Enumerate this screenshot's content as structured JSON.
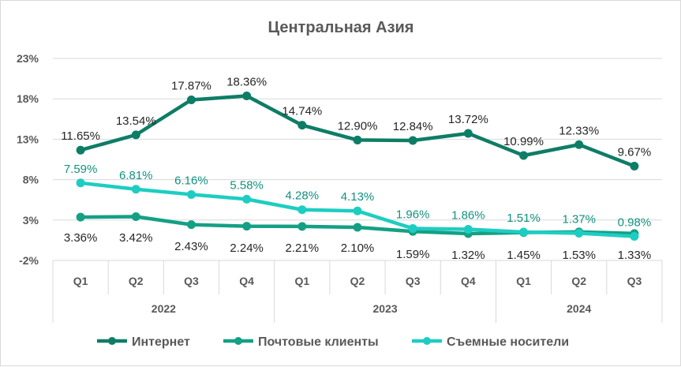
{
  "chart_data": {
    "type": "line",
    "title": "Центральная Азия",
    "y_ticks": [
      "23%",
      "18%",
      "13%",
      "8%",
      "3%",
      "-2%"
    ],
    "ylim": [
      -2,
      23
    ],
    "grid": true,
    "categories": [
      "Q1",
      "Q2",
      "Q3",
      "Q4",
      "Q1",
      "Q2",
      "Q3",
      "Q4",
      "Q1",
      "Q2",
      "Q3"
    ],
    "groups": [
      {
        "label": "2022",
        "count": 4
      },
      {
        "label": "2023",
        "count": 4
      },
      {
        "label": "2024",
        "count": 3
      }
    ],
    "legend_position": "bottom",
    "series": [
      {
        "name": "Интернет",
        "color": "#0e7d66",
        "label_color": "#262626",
        "label_pos": "above",
        "values": [
          11.65,
          13.54,
          17.87,
          18.36,
          14.74,
          12.9,
          12.84,
          13.72,
          10.99,
          12.33,
          9.67
        ],
        "labels": [
          "11.65%",
          "13.54%",
          "17.87%",
          "18.36%",
          "14.74%",
          "12.90%",
          "12.84%",
          "13.72%",
          "10.99%",
          "12.33%",
          "9.67%"
        ]
      },
      {
        "name": "Почтовые клиенты",
        "color": "#14a085",
        "label_color": "#262626",
        "label_pos": "below",
        "values": [
          3.36,
          3.42,
          2.43,
          2.24,
          2.21,
          2.1,
          1.59,
          1.32,
          1.45,
          1.53,
          1.33
        ],
        "labels": [
          "3.36%",
          "3.42%",
          "2.43%",
          "2.24%",
          "2.21%",
          "2.10%",
          "1.59%",
          "1.32%",
          "1.45%",
          "1.53%",
          "1.33%"
        ]
      },
      {
        "name": "Съемные носители",
        "color": "#1ecdc2",
        "label_color": "#12927f",
        "label_pos": "above",
        "values": [
          7.59,
          6.81,
          6.16,
          5.58,
          4.28,
          4.13,
          1.96,
          1.86,
          1.51,
          1.37,
          0.98
        ],
        "labels": [
          "7.59%",
          "6.81%",
          "6.16%",
          "5.58%",
          "4.28%",
          "4.13%",
          "1.96%",
          "1.86%",
          "1.51%",
          "1.37%",
          "0.98%"
        ]
      }
    ]
  }
}
